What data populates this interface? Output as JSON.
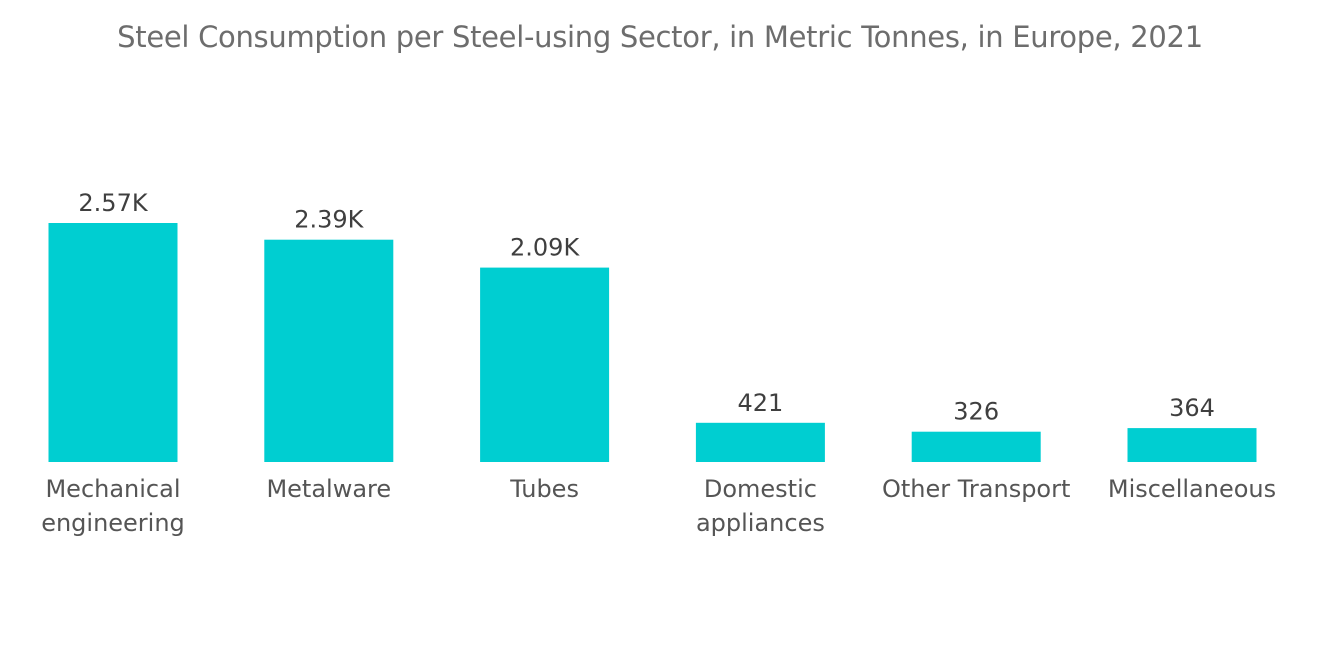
{
  "chart_data": {
    "type": "bar",
    "title": "Steel Consumption per Steel-using Sector, in Metric Tonnes, in Europe, 2021",
    "xlabel": "",
    "ylabel": "",
    "categories": [
      [
        "Mechanical",
        "engineering"
      ],
      [
        "Metalware"
      ],
      [
        "Tubes"
      ],
      [
        "Domestic",
        "appliances"
      ],
      [
        "Other Transport"
      ],
      [
        "Miscellaneous"
      ]
    ],
    "values": [
      2570,
      2390,
      2090,
      421,
      326,
      364
    ],
    "value_labels": [
      "2.57K",
      "2.39K",
      "2.09K",
      "421",
      "326",
      "364"
    ],
    "ylim": [
      0,
      2570
    ],
    "grid": false,
    "bar_color": "#00ced1"
  }
}
